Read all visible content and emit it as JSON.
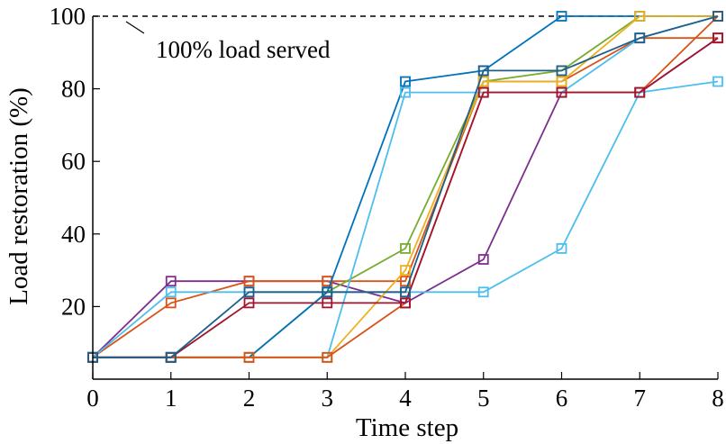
{
  "chart_data": {
    "type": "line",
    "title": "",
    "xlabel": "Time step",
    "ylabel": "Load restoration (%)",
    "xlim": [
      0,
      8
    ],
    "ylim": [
      0,
      100
    ],
    "xticks": [
      0,
      1,
      2,
      3,
      4,
      5,
      6,
      7,
      8
    ],
    "yticks": [
      20,
      40,
      60,
      80,
      100
    ],
    "grid": false,
    "legend": "none",
    "marker": "square",
    "x": [
      0,
      1,
      2,
      3,
      4,
      5,
      6,
      7,
      8
    ],
    "reference_line": {
      "y": 100,
      "label": "100% load served",
      "style": "dashed"
    },
    "series": [
      {
        "color": "#7e2f8e",
        "values": [
          6,
          27,
          27,
          27,
          21,
          33,
          79,
          79,
          94
        ]
      },
      {
        "color": "#d95319",
        "values": [
          6,
          21,
          27,
          27,
          27,
          82,
          82,
          94,
          94
        ]
      },
      {
        "color": "#4dbeee",
        "values": [
          6,
          24,
          24,
          24,
          24,
          24,
          36,
          79,
          82
        ]
      },
      {
        "color": "#77ac30",
        "values": [
          6,
          6,
          6,
          24,
          36,
          82,
          85,
          100,
          100
        ]
      },
      {
        "color": "#0072bd",
        "values": [
          6,
          6,
          6,
          24,
          82,
          85,
          100,
          100,
          100
        ]
      },
      {
        "color": "#4dbeee",
        "values": [
          6,
          6,
          6,
          6,
          79,
          79,
          79,
          94,
          100
        ]
      },
      {
        "color": "#edb120",
        "values": [
          6,
          6,
          6,
          6,
          30,
          82,
          82,
          100,
          100
        ]
      },
      {
        "color": "#d95319",
        "values": [
          6,
          6,
          6,
          6,
          21,
          79,
          79,
          79,
          100
        ]
      },
      {
        "color": "#a2142f",
        "values": [
          6,
          6,
          21,
          21,
          21,
          79,
          79,
          79,
          94
        ]
      },
      {
        "color": "#1f5f8b",
        "values": [
          6,
          6,
          24,
          24,
          24,
          85,
          85,
          94,
          100
        ]
      }
    ]
  }
}
